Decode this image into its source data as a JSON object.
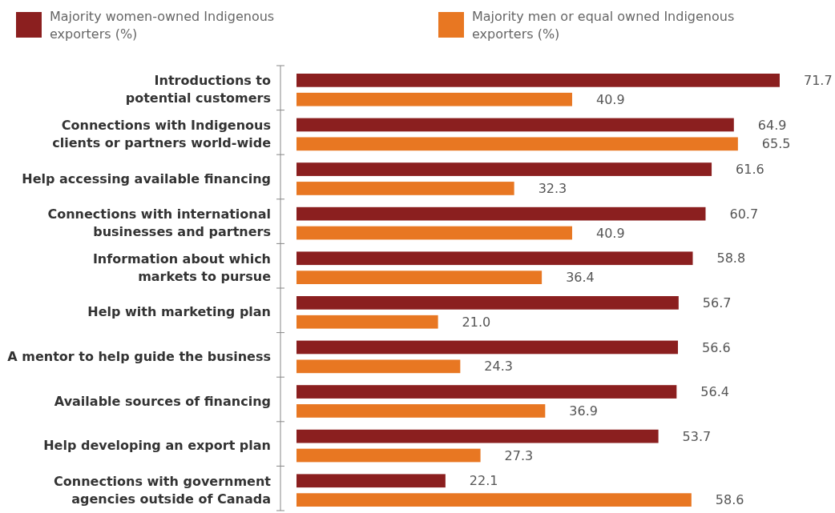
{
  "chart_data": {
    "type": "bar",
    "orientation": "horizontal",
    "legend": "top",
    "categories": [
      "Introductions to\npotential customers",
      "Connections with Indigenous\nclients or partners world-wide",
      "Help accessing available financing",
      "Connections with international\nbusinesses and partners",
      "Information about which\nmarkets to pursue",
      "Help with marketing plan",
      "A mentor to help guide the business",
      "Available sources of financing",
      "Help developing an export plan",
      "Connections with government\nagencies outside of Canada"
    ],
    "series": [
      {
        "name": "Majority women-owned Indigenous exporters (%)",
        "color": "#8b1f1f",
        "values": [
          71.7,
          64.9,
          61.6,
          60.7,
          58.8,
          56.7,
          56.6,
          56.4,
          53.7,
          22.1
        ],
        "value_labels": [
          "71.7",
          "64.9",
          "61.6",
          "60.7",
          "58.8",
          "56.7",
          "56.6",
          "56.4",
          "53.7",
          "22.1"
        ]
      },
      {
        "name": "Majority men or equal owned Indigenous exporters (%)",
        "color": "#e87722",
        "values": [
          40.9,
          65.5,
          32.3,
          40.9,
          36.4,
          21,
          24.3,
          36.9,
          27.3,
          58.6
        ],
        "value_labels": [
          "40.9",
          "65.5",
          "32.3",
          "40.9",
          "36.4",
          "21.0",
          "24.3",
          "36.9",
          "27.3",
          "58.6"
        ]
      }
    ]
  }
}
